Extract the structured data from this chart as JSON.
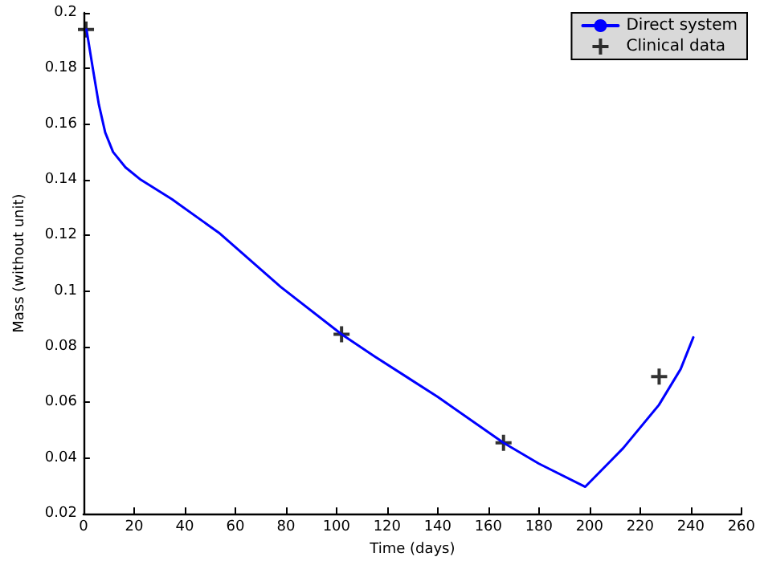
{
  "chart_data": {
    "type": "line",
    "xlabel": "Time (days)",
    "ylabel": "Mass (without unit)",
    "xlim": [
      0,
      260
    ],
    "xticks": [
      0,
      20,
      40,
      60,
      80,
      100,
      120,
      140,
      160,
      180,
      200,
      220,
      240,
      260
    ],
    "ylim": [
      0.02,
      0.2
    ],
    "yticks": [
      0.02,
      0.04,
      0.06,
      0.08,
      0.1,
      0.12,
      0.14,
      0.16,
      0.18,
      0.2
    ],
    "grid": false,
    "legend": "top right",
    "series": [
      {
        "name": "Direct system",
        "color": "#0000ff",
        "marker": "none",
        "line_style": "solid",
        "x": [
          1.2,
          3.7,
          6.1,
          8.6,
          11.7,
          16.6,
          22.7,
          35,
          53.5,
          78,
          102,
          115,
          140,
          166,
          180,
          198.3,
          213.3,
          227.4,
          236,
          241
        ],
        "values": [
          0.194,
          0.18,
          0.167,
          0.157,
          0.15,
          0.1445,
          0.14,
          0.133,
          0.121,
          0.1015,
          0.0845,
          0.0766,
          0.062,
          0.0455,
          0.038,
          0.0297,
          0.0436,
          0.0591,
          0.072,
          0.0834
        ]
      },
      {
        "name": "Clinical data",
        "type": "scatter",
        "color": "#000000",
        "marker": "cross",
        "x": [
          1,
          102,
          166,
          227.5
        ],
        "values": [
          0.194,
          0.0845,
          0.0455,
          0.0693
        ]
      }
    ]
  }
}
